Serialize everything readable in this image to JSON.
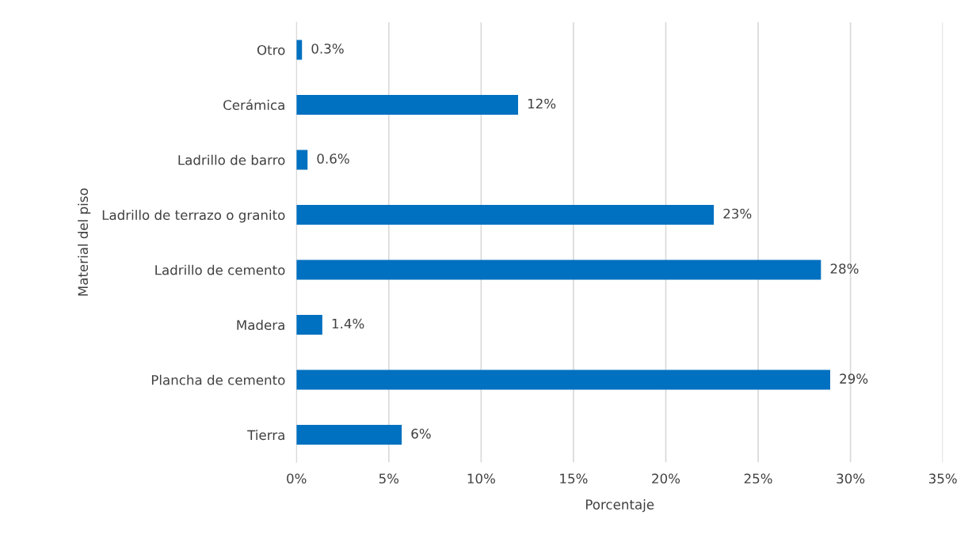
{
  "chart_data": {
    "type": "bar",
    "orientation": "horizontal",
    "xlabel": "Porcentaje",
    "ylabel": "Material del piso",
    "categories": [
      "Otro",
      "Cerámica",
      "Ladrillo de barro",
      "Ladrillo de terrazo o granito",
      "Ladrillo de cemento",
      "Madera",
      "Plancha de cemento",
      "Tierra"
    ],
    "values": [
      0.3,
      12.0,
      0.6,
      22.6,
      28.4,
      1.4,
      28.9,
      5.7
    ],
    "value_labels": [
      "0.3%",
      "12%",
      "0.6%",
      "23%",
      "28%",
      "1.4%",
      "29%",
      "6%"
    ],
    "color": "#0070c0",
    "xlim": [
      0,
      35
    ],
    "xticks": [
      {
        "value": 0,
        "label": "0%"
      },
      {
        "value": 5,
        "label": "5%"
      },
      {
        "value": 10,
        "label": "10%"
      },
      {
        "value": 15,
        "label": "15%"
      },
      {
        "value": 20,
        "label": "20%"
      },
      {
        "value": 25,
        "label": "25%"
      },
      {
        "value": 30,
        "label": "30%"
      },
      {
        "value": 35,
        "label": "35%"
      }
    ],
    "grid": "x"
  }
}
